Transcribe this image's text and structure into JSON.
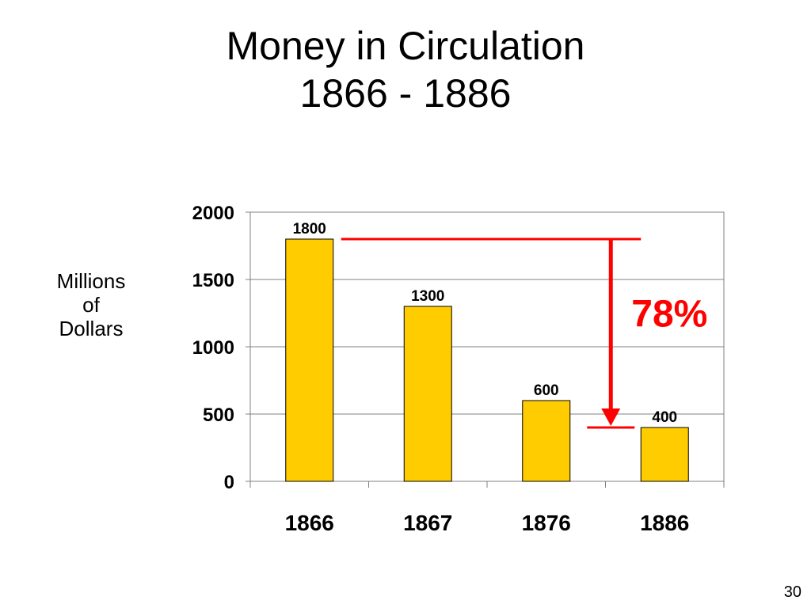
{
  "slide": {
    "title_line1": "Money in Circulation",
    "title_line2": "1866 - 1886",
    "ylabel_line1": "Millions",
    "ylabel_line2": "of",
    "ylabel_line3": "Dollars",
    "page_number": "30"
  },
  "colors": {
    "bar": "#FFCC00",
    "bar_outline": "#000000",
    "annotation": "#FF0000",
    "grid": "#808080"
  },
  "chart_data": {
    "type": "bar",
    "title": "Money in Circulation 1866 - 1886",
    "xlabel": "",
    "ylabel": "Millions of Dollars",
    "categories": [
      "1866",
      "1867",
      "1876",
      "1886"
    ],
    "values": [
      1800,
      1300,
      600,
      400
    ],
    "data_labels": [
      "1800",
      "1300",
      "600",
      "400"
    ],
    "ylim": [
      0,
      2000
    ],
    "yticks": [
      0,
      500,
      1000,
      1500,
      2000
    ],
    "ytick_labels": [
      "0",
      "500",
      "1000",
      "1500",
      "2000"
    ],
    "grid": true,
    "legend": "none",
    "annotation": {
      "text": "78%",
      "from_value": 1800,
      "to_value": 400,
      "from_category": "1866",
      "to_category": "1886"
    }
  }
}
